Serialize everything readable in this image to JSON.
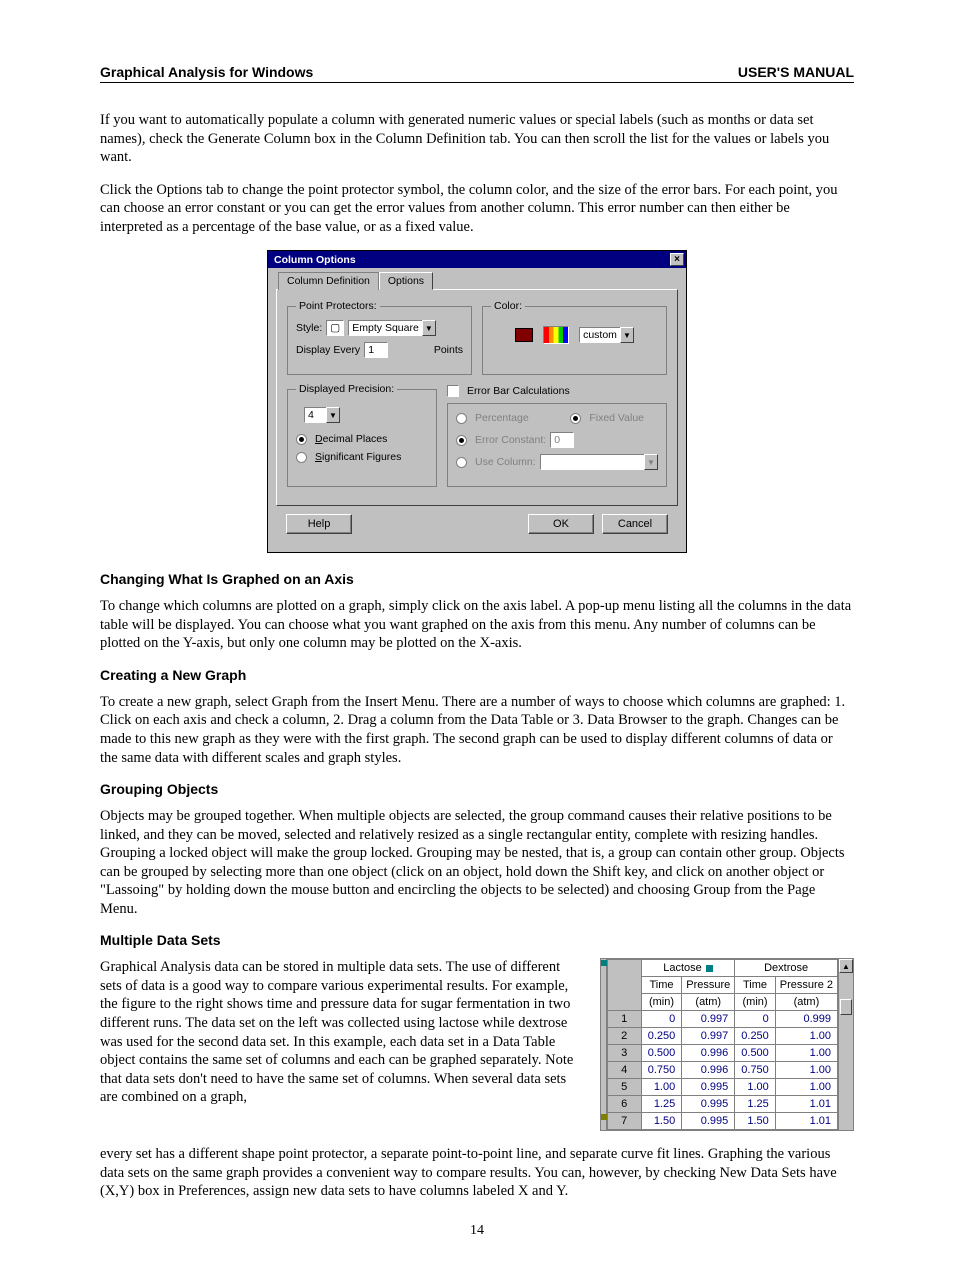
{
  "header": {
    "left": "Graphical Analysis for Windows",
    "right": "USER'S MANUAL"
  },
  "p1": "If you want to automatically populate a column with generated numeric values or special labels (such as months or data set names), check the Generate Column box in the Column Definition tab. You can then scroll the list for the values or labels you want.",
  "p2": "Click the Options tab to change the point protector symbol, the column color, and the size of the error bars. For each point, you can choose an error constant or you can get the error values from another column. This error number can then either be interpreted as a percentage of the base value, or as a fixed value.",
  "dialog": {
    "title": "Column Options",
    "tabs": {
      "def": "Column Definition",
      "opt": "Options"
    },
    "pointProtectors": {
      "legend": "Point Protectors:",
      "styleLabel": "Style:",
      "styleValue": "Empty Square",
      "displayEveryLabel": "Display Every",
      "displayEveryValue": "1",
      "pointsLabel": "Points"
    },
    "color": {
      "legend": "Color:",
      "swatchHex": "#800000",
      "dropdownValue": "custom"
    },
    "precision": {
      "legend": "Displayed Precision:",
      "value": "4",
      "decimal": "Decimal Places",
      "sigfig": "Significant Figures"
    },
    "errorBars": {
      "checkbox": "Error Bar Calculations",
      "percentage": "Percentage",
      "fixed": "Fixed Value",
      "constLabel": "Error Constant:",
      "constValue": "0",
      "useColumn": "Use Column:"
    },
    "buttons": {
      "help": "Help",
      "ok": "OK",
      "cancel": "Cancel"
    }
  },
  "sec1": {
    "title": "Changing What Is Graphed on an Axis",
    "p": "To change which columns are plotted on a graph, simply click on the axis label. A pop-up menu listing all the columns in the data table will be displayed. You can choose what you want graphed on the axis from this menu. Any number of columns can be plotted on the Y-axis, but only one column may be plotted on the X-axis."
  },
  "sec2": {
    "title": "Creating a New Graph",
    "p": "To create a new graph, select Graph from the Insert Menu. There are a number of ways to choose which columns are graphed: 1. Click on each axis and check a column, 2. Drag a column from the Data Table or 3. Data Browser to the graph. Changes can be made to this new graph as they were with the first graph. The second graph can be used to display different columns of data or the same data with different scales and graph styles."
  },
  "sec3": {
    "title": "Grouping Objects",
    "p": "Objects may be grouped together. When multiple objects are selected, the group command causes their relative positions to be linked, and they can be moved, selected and relatively resized as a single rectangular entity, complete with resizing handles. Grouping a locked object will make the group locked. Grouping may be nested, that is, a group can contain other group. Objects can be grouped by selecting more than one object (click on an object, hold down the Shift key, and click on another object or \"Lassoing\" by holding down the mouse button and encircling the objects to be selected) and choosing Group from the Page Menu."
  },
  "sec4": {
    "title": "Multiple Data Sets",
    "p_left": "Graphical Analysis data can be stored in multiple data sets. The use of different sets of data is a good way to compare various experimental results. For example, the figure to the right shows time and pressure data for sugar fermentation in two different runs. The data set on the left was collected using lactose while dextrose was used for the second data set. In this example, each data set in a Data Table object contains the same set of columns and each can be graphed separately. Note that data sets don't need to have the same set of columns. When several data sets are combined on a graph,",
    "p_after": "every set has a different shape point protector, a separate point-to-point line, and separate curve fit lines. Graphing the various data sets on the same graph provides a convenient way to compare results. You can, however, by checking New Data Sets have (X,Y) box in Preferences, assign new data sets to have columns labeled X and Y."
  },
  "dataTable": {
    "sets": [
      {
        "name": "Lactose",
        "cols": [
          {
            "head1": "Time",
            "head2": "(min)"
          },
          {
            "head1": "Pressure",
            "head2": "(atm)"
          }
        ]
      },
      {
        "name": "Dextrose",
        "cols": [
          {
            "head1": "Time",
            "head2": "(min)"
          },
          {
            "head1": "Pressure 2",
            "head2": "(atm)"
          }
        ]
      }
    ],
    "rows": [
      {
        "n": "1",
        "c": [
          "0",
          "0.997",
          "0",
          "0.999"
        ]
      },
      {
        "n": "2",
        "c": [
          "0.250",
          "0.997",
          "0.250",
          "1.00"
        ]
      },
      {
        "n": "3",
        "c": [
          "0.500",
          "0.996",
          "0.500",
          "1.00"
        ]
      },
      {
        "n": "4",
        "c": [
          "0.750",
          "0.996",
          "0.750",
          "1.00"
        ]
      },
      {
        "n": "5",
        "c": [
          "1.00",
          "0.995",
          "1.00",
          "1.00"
        ]
      },
      {
        "n": "6",
        "c": [
          "1.25",
          "0.995",
          "1.25",
          "1.01"
        ]
      },
      {
        "n": "7",
        "c": [
          "1.50",
          "0.995",
          "1.50",
          "1.01"
        ]
      }
    ]
  },
  "pageNumber": "14"
}
